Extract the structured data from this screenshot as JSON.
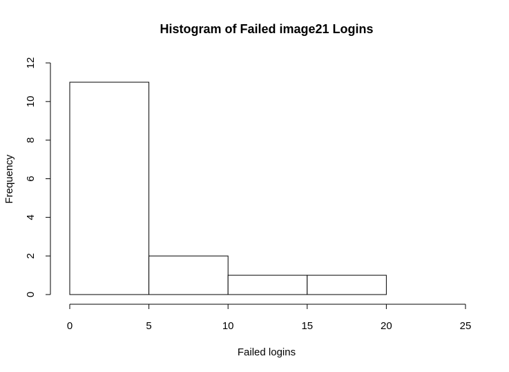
{
  "chart_data": {
    "type": "bar",
    "title": "Histogram of Failed image21 Logins",
    "xlabel": "Failed logins",
    "ylabel": "Frequency",
    "bins": [
      {
        "start": 0,
        "end": 5,
        "count": 11
      },
      {
        "start": 5,
        "end": 10,
        "count": 2
      },
      {
        "start": 10,
        "end": 15,
        "count": 1
      },
      {
        "start": 15,
        "end": 20,
        "count": 1
      }
    ],
    "xlim": [
      0,
      25
    ],
    "ylim": [
      0,
      12
    ],
    "xticks": [
      0,
      5,
      10,
      15,
      20,
      25
    ],
    "yticks": [
      0,
      2,
      4,
      6,
      8,
      10,
      12
    ],
    "grid": false,
    "legend": "none"
  }
}
